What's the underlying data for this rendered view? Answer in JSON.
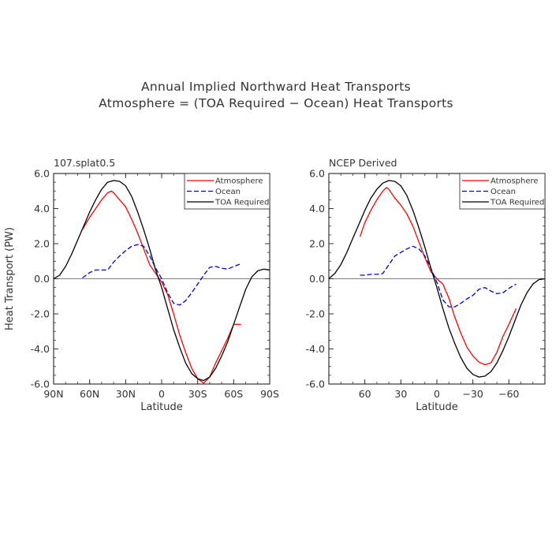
{
  "figure": {
    "title": "Annual Implied Northward Heat Transports",
    "subtitle": "Atmosphere = (TOA Required − Ocean) Heat Transports"
  },
  "chart_data": [
    {
      "type": "line",
      "panel_label": "107.splat0.5",
      "xlabel": "Latitude",
      "ylabel": "Heat Transport (PW)",
      "xlim": [
        90,
        -90
      ],
      "ylim": [
        -6.0,
        6.0
      ],
      "x_ticks": [
        90,
        60,
        30,
        0,
        -30,
        -60,
        -90
      ],
      "x_tick_labels": [
        "90N",
        "60N",
        "30N",
        "0",
        "30S",
        "60S",
        "90S"
      ],
      "y_ticks": [
        -6,
        -4,
        -2,
        0,
        2,
        4,
        6
      ],
      "y_tick_labels": [
        "-6.0",
        "-4.0",
        "-2.0",
        "0.0",
        "2.0",
        "4.0",
        "6.0"
      ],
      "zero_line": true,
      "legend_placement": "top-right",
      "series": [
        {
          "name": "Atmosphere",
          "color": "#ff0000",
          "dash": "solid",
          "x": [
            66,
            60,
            55,
            50,
            45,
            42,
            40,
            35,
            30,
            25,
            20,
            15,
            10,
            5,
            0,
            -5,
            -10,
            -15,
            -20,
            -25,
            -30,
            -35,
            -40,
            -45,
            -50,
            -55,
            -60,
            -66
          ],
          "y": [
            2.8,
            3.5,
            4.0,
            4.5,
            4.9,
            5.0,
            4.9,
            4.5,
            4.1,
            3.4,
            2.6,
            1.7,
            0.8,
            0.3,
            -0.2,
            -0.9,
            -2.0,
            -3.2,
            -4.2,
            -5.1,
            -5.7,
            -5.95,
            -5.6,
            -4.8,
            -4.1,
            -3.4,
            -2.6,
            -2.6
          ]
        },
        {
          "name": "Ocean",
          "color": "#0000cc",
          "dash": "dashed",
          "x": [
            66,
            60,
            55,
            50,
            45,
            40,
            35,
            30,
            25,
            20,
            15,
            10,
            5,
            0,
            -5,
            -10,
            -15,
            -20,
            -25,
            -30,
            -35,
            -40,
            -45,
            -50,
            -55,
            -60,
            -66
          ],
          "y": [
            0.05,
            0.35,
            0.5,
            0.5,
            0.5,
            0.95,
            1.3,
            1.6,
            1.85,
            1.95,
            1.85,
            1.3,
            0.6,
            0.0,
            -0.8,
            -1.4,
            -1.5,
            -1.25,
            -0.8,
            -0.3,
            0.2,
            0.65,
            0.7,
            0.6,
            0.55,
            0.7,
            0.85
          ]
        },
        {
          "name": "TOA Required",
          "color": "#000000",
          "dash": "solid",
          "x": [
            90,
            85,
            80,
            75,
            70,
            65,
            60,
            55,
            50,
            45,
            40,
            35,
            30,
            25,
            20,
            15,
            10,
            5,
            0,
            -5,
            -10,
            -15,
            -20,
            -25,
            -30,
            -35,
            -40,
            -45,
            -50,
            -55,
            -60,
            -65,
            -70,
            -75,
            -80,
            -85,
            -90
          ],
          "y": [
            0.0,
            0.2,
            0.7,
            1.4,
            2.2,
            3.0,
            3.8,
            4.5,
            5.1,
            5.5,
            5.6,
            5.55,
            5.3,
            4.7,
            3.8,
            2.8,
            1.7,
            0.5,
            -0.5,
            -1.7,
            -2.9,
            -3.9,
            -4.8,
            -5.4,
            -5.7,
            -5.8,
            -5.6,
            -5.1,
            -4.4,
            -3.6,
            -2.6,
            -1.6,
            -0.6,
            0.1,
            0.45,
            0.55,
            0.5
          ]
        }
      ]
    },
    {
      "type": "line",
      "panel_label": "NCEP Derived",
      "xlabel": "Latitude",
      "ylabel": "",
      "xlim": [
        90,
        -90
      ],
      "ylim": [
        -6.0,
        6.0
      ],
      "x_ticks": [
        60,
        30,
        0,
        -30,
        -60
      ],
      "x_tick_labels": [
        "60",
        "30",
        "0",
        "−30",
        "−60"
      ],
      "y_ticks": [
        -6,
        -4,
        -2,
        0,
        2,
        4,
        6
      ],
      "y_tick_labels": [
        "-6.0",
        "-4.0",
        "-2.0",
        "0.0",
        "2.0",
        "4.0",
        "6.0"
      ],
      "zero_line": true,
      "legend_placement": "top-right",
      "series": [
        {
          "name": "Atmosphere",
          "color": "#ff0000",
          "dash": "solid",
          "x": [
            64,
            60,
            55,
            50,
            45,
            42,
            40,
            35,
            30,
            25,
            20,
            15,
            10,
            5,
            0,
            -5,
            -10,
            -15,
            -20,
            -25,
            -30,
            -35,
            -40,
            -45,
            -50,
            -55,
            -60,
            -66
          ],
          "y": [
            2.4,
            3.2,
            3.9,
            4.5,
            5.0,
            5.2,
            5.1,
            4.6,
            4.2,
            3.7,
            3.0,
            2.1,
            1.2,
            0.4,
            0.0,
            -0.3,
            -1.1,
            -2.2,
            -3.1,
            -3.9,
            -4.4,
            -4.75,
            -4.9,
            -4.8,
            -4.2,
            -3.3,
            -2.6,
            -1.7
          ]
        },
        {
          "name": "Ocean",
          "color": "#0000cc",
          "dash": "dashed",
          "x": [
            64,
            60,
            55,
            50,
            45,
            40,
            35,
            30,
            25,
            20,
            15,
            10,
            5,
            0,
            -5,
            -10,
            -15,
            -20,
            -25,
            -30,
            -35,
            -40,
            -45,
            -50,
            -55,
            -60,
            -66
          ],
          "y": [
            0.2,
            0.2,
            0.25,
            0.25,
            0.3,
            0.8,
            1.3,
            1.5,
            1.7,
            1.85,
            1.7,
            1.3,
            0.6,
            -0.2,
            -1.2,
            -1.6,
            -1.6,
            -1.4,
            -1.15,
            -0.95,
            -0.6,
            -0.5,
            -0.7,
            -0.85,
            -0.8,
            -0.55,
            -0.3
          ]
        },
        {
          "name": "TOA Required",
          "color": "#000000",
          "dash": "solid",
          "x": [
            90,
            85,
            80,
            75,
            70,
            65,
            60,
            55,
            50,
            45,
            40,
            35,
            30,
            25,
            20,
            15,
            10,
            5,
            0,
            -5,
            -10,
            -15,
            -20,
            -25,
            -30,
            -35,
            -40,
            -45,
            -50,
            -55,
            -60,
            -65,
            -70,
            -75,
            -80,
            -85,
            -90
          ],
          "y": [
            0.0,
            0.3,
            0.8,
            1.5,
            2.3,
            3.1,
            3.9,
            4.6,
            5.1,
            5.45,
            5.6,
            5.55,
            5.3,
            4.75,
            3.9,
            2.9,
            1.8,
            0.6,
            -0.5,
            -1.7,
            -2.8,
            -3.7,
            -4.5,
            -5.1,
            -5.45,
            -5.6,
            -5.55,
            -5.3,
            -4.8,
            -4.1,
            -3.3,
            -2.4,
            -1.5,
            -0.8,
            -0.3,
            -0.05,
            0.0
          ]
        }
      ]
    }
  ]
}
